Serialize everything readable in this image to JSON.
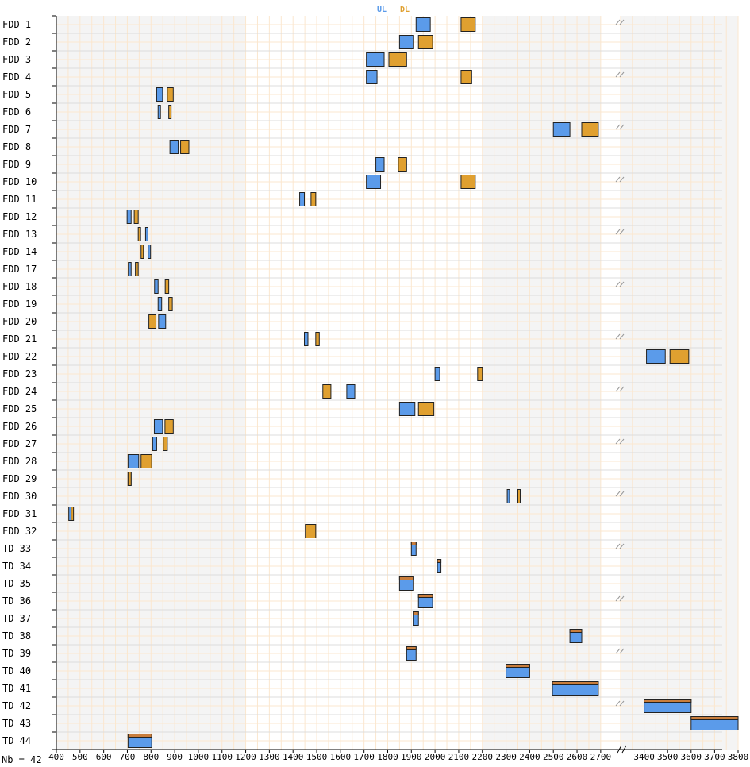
{
  "legend": {
    "ul": "UL",
    "dl": "DL",
    "ul_color": "#5b9bea",
    "dl_color": "#e0a030"
  },
  "nb_label": "Nb = 42",
  "colors": {
    "ul": "#5b9bea",
    "dl": "#e0a030",
    "td_top": "#c87d3c",
    "grid_major": "#dcdcdc",
    "grid_minor": "#fbe7cf",
    "shade": "#f4f4f4"
  },
  "chart_data": {
    "type": "bar",
    "orientation": "horizontal-range",
    "xlim": [
      400,
      3800
    ],
    "x_break": {
      "from": 2700,
      "to": 3300
    },
    "shaded_ranges": [
      [
        400,
        1200
      ],
      [
        2200,
        2700
      ],
      [
        3300,
        3800
      ]
    ],
    "x_ticks": [
      400,
      500,
      600,
      700,
      800,
      900,
      1000,
      1100,
      1200,
      1300,
      1400,
      1500,
      1600,
      1700,
      1800,
      1900,
      2000,
      2100,
      2200,
      2300,
      2400,
      2500,
      2600,
      2700,
      3400,
      3500,
      3600,
      3700,
      3800
    ],
    "x_tick_labels": [
      "400",
      "500",
      "600",
      "700",
      "800",
      "900",
      "1000",
      "1100",
      "1200",
      "1300",
      "1400",
      "1500",
      "1600",
      "1700",
      "1800",
      "1900",
      "2000",
      "2100",
      "2200",
      "2300",
      "2400",
      "2500",
      "2600",
      "2700",
      "3400",
      "3500",
      "3600",
      "3700",
      "3800"
    ],
    "bands": [
      {
        "label": "FDD  1",
        "ul": [
          1920,
          1980
        ],
        "dl": [
          2110,
          2170
        ]
      },
      {
        "label": "FDD  2",
        "ul": [
          1850,
          1910
        ],
        "dl": [
          1930,
          1990
        ]
      },
      {
        "label": "FDD  3",
        "ul": [
          1710,
          1785
        ],
        "dl": [
          1805,
          1880
        ]
      },
      {
        "label": "FDD  4",
        "ul": [
          1710,
          1755
        ],
        "dl": [
          2110,
          2155
        ]
      },
      {
        "label": "FDD  5",
        "ul": [
          824,
          849
        ],
        "dl": [
          869,
          894
        ]
      },
      {
        "label": "FDD  6",
        "ul": [
          830,
          840
        ],
        "dl": [
          875,
          885
        ]
      },
      {
        "label": "FDD  7",
        "ul": [
          2500,
          2570
        ],
        "dl": [
          2620,
          2690
        ]
      },
      {
        "label": "FDD  8",
        "ul": [
          880,
          915
        ],
        "dl": [
          925,
          960
        ]
      },
      {
        "label": "FDD  9",
        "ul": [
          1750,
          1785
        ],
        "dl": [
          1845,
          1880
        ]
      },
      {
        "label": "FDD  10",
        "ul": [
          1710,
          1770
        ],
        "dl": [
          2110,
          2170
        ]
      },
      {
        "label": "FDD  11",
        "ul": [
          1428,
          1448
        ],
        "dl": [
          1476,
          1496
        ]
      },
      {
        "label": "FDD  12",
        "ul": [
          699,
          716
        ],
        "dl": [
          729,
          746
        ]
      },
      {
        "label": "FDD  13",
        "ul": [
          777,
          787
        ],
        "dl": [
          746,
          756
        ]
      },
      {
        "label": "FDD  14",
        "ul": [
          788,
          798
        ],
        "dl": [
          758,
          768
        ]
      },
      {
        "label": "FDD  17",
        "ul": [
          704,
          716
        ],
        "dl": [
          734,
          746
        ]
      },
      {
        "label": "FDD  18",
        "ul": [
          815,
          830
        ],
        "dl": [
          860,
          875
        ]
      },
      {
        "label": "FDD  19",
        "ul": [
          830,
          845
        ],
        "dl": [
          875,
          890
        ]
      },
      {
        "label": "FDD  20",
        "ul": [
          832,
          862
        ],
        "dl": [
          791,
          821
        ]
      },
      {
        "label": "FDD  21",
        "ul": [
          1448,
          1463
        ],
        "dl": [
          1496,
          1511
        ]
      },
      {
        "label": "FDD  22",
        "ul": [
          3410,
          3490
        ],
        "dl": [
          3510,
          3590
        ]
      },
      {
        "label": "FDD  23",
        "ul": [
          2000,
          2020
        ],
        "dl": [
          2180,
          2200
        ]
      },
      {
        "label": "FDD  24",
        "ul": [
          1627,
          1661
        ],
        "dl": [
          1526,
          1560
        ]
      },
      {
        "label": "FDD  25",
        "ul": [
          1850,
          1915
        ],
        "dl": [
          1930,
          1995
        ]
      },
      {
        "label": "FDD  26",
        "ul": [
          814,
          849
        ],
        "dl": [
          859,
          894
        ]
      },
      {
        "label": "FDD  27",
        "ul": [
          807,
          824
        ],
        "dl": [
          852,
          869
        ]
      },
      {
        "label": "FDD  28",
        "ul": [
          703,
          748
        ],
        "dl": [
          758,
          803
        ]
      },
      {
        "label": "FDD  29",
        "ul": [
          703,
          716
        ],
        "dl": [
          703,
          716
        ]
      },
      {
        "label": "FDD  30",
        "ul": [
          2305,
          2315
        ],
        "dl": [
          2350,
          2360
        ]
      },
      {
        "label": "FDD  31",
        "ul": [
          452.5,
          457.5
        ],
        "dl": [
          462.5,
          467.5
        ]
      },
      {
        "label": "FDD  32",
        "ul": null,
        "dl": [
          1452,
          1496
        ]
      },
      {
        "label": "TD  33",
        "td": [
          1900,
          1920
        ]
      },
      {
        "label": "TD  34",
        "td": [
          2010,
          2025
        ]
      },
      {
        "label": "TD  35",
        "td": [
          1850,
          1910
        ]
      },
      {
        "label": "TD  36",
        "td": [
          1930,
          1990
        ]
      },
      {
        "label": "TD  37",
        "td": [
          1910,
          1930
        ]
      },
      {
        "label": "TD  38",
        "td": [
          2570,
          2620
        ]
      },
      {
        "label": "TD  39",
        "td": [
          1880,
          1920
        ]
      },
      {
        "label": "TD  40",
        "td": [
          2300,
          2400
        ]
      },
      {
        "label": "TD  41",
        "td": [
          2496,
          2690
        ]
      },
      {
        "label": "TD  42",
        "td": [
          3400,
          3600
        ]
      },
      {
        "label": "TD  43",
        "td": [
          3600,
          3800
        ]
      },
      {
        "label": "TD  44",
        "td": [
          703,
          803
        ]
      }
    ]
  }
}
